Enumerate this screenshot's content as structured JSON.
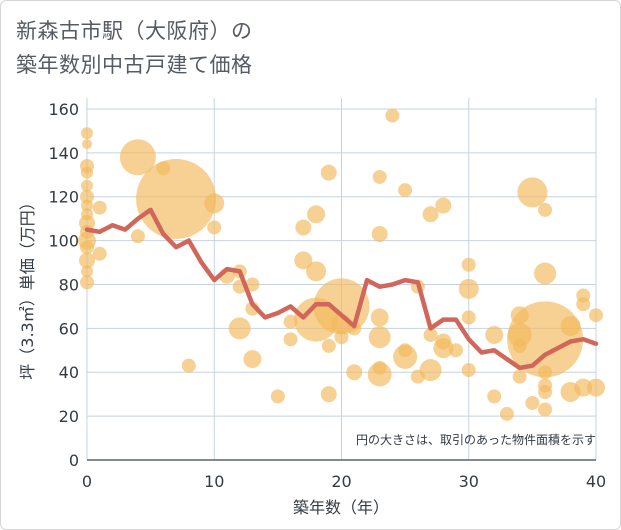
{
  "chart_data": {
    "type": "scatter+line",
    "title_lines": [
      "新森古市駅（大阪府）の",
      "築年数別中古戸建て価格"
    ],
    "xlabel": "築年数（年）",
    "ylabel": "坪（3.3㎡）単価（万円）",
    "xlim": [
      0,
      40
    ],
    "ylim": [
      0,
      165
    ],
    "x_ticks": [
      0,
      10,
      20,
      30,
      40
    ],
    "y_ticks": [
      0,
      20,
      40,
      60,
      80,
      100,
      120,
      140,
      160
    ],
    "grid": true,
    "annotation": "円の大きさは、取引のあった物件面積を示す",
    "bubble_color": "#f2b85a",
    "line_color": "#d0675a",
    "scatter": [
      {
        "x": 0,
        "y": 149,
        "s": 6
      },
      {
        "x": 0,
        "y": 144,
        "s": 5
      },
      {
        "x": 0,
        "y": 134,
        "s": 7
      },
      {
        "x": 0,
        "y": 131,
        "s": 6
      },
      {
        "x": 0,
        "y": 125,
        "s": 6
      },
      {
        "x": 0,
        "y": 120,
        "s": 7
      },
      {
        "x": 0,
        "y": 116,
        "s": 6
      },
      {
        "x": 0,
        "y": 112,
        "s": 6
      },
      {
        "x": 0,
        "y": 108,
        "s": 8
      },
      {
        "x": 0,
        "y": 104,
        "s": 7
      },
      {
        "x": 0,
        "y": 100,
        "s": 9
      },
      {
        "x": 0,
        "y": 97,
        "s": 7
      },
      {
        "x": 0,
        "y": 91,
        "s": 8
      },
      {
        "x": 0,
        "y": 86,
        "s": 6
      },
      {
        "x": 0,
        "y": 81,
        "s": 7
      },
      {
        "x": 1,
        "y": 115,
        "s": 7
      },
      {
        "x": 1,
        "y": 94,
        "s": 7
      },
      {
        "x": 4,
        "y": 138,
        "s": 18
      },
      {
        "x": 4,
        "y": 102,
        "s": 7
      },
      {
        "x": 6,
        "y": 133,
        "s": 7
      },
      {
        "x": 7,
        "y": 119,
        "s": 40
      },
      {
        "x": 8,
        "y": 43,
        "s": 7
      },
      {
        "x": 10,
        "y": 117,
        "s": 10
      },
      {
        "x": 10,
        "y": 106,
        "s": 7
      },
      {
        "x": 11,
        "y": 84,
        "s": 8
      },
      {
        "x": 12,
        "y": 86,
        "s": 7
      },
      {
        "x": 12,
        "y": 79,
        "s": 7
      },
      {
        "x": 12,
        "y": 60,
        "s": 11
      },
      {
        "x": 13,
        "y": 80,
        "s": 7
      },
      {
        "x": 13,
        "y": 69,
        "s": 7
      },
      {
        "x": 13,
        "y": 46,
        "s": 9
      },
      {
        "x": 15,
        "y": 29,
        "s": 7
      },
      {
        "x": 16,
        "y": 63,
        "s": 7
      },
      {
        "x": 16,
        "y": 55,
        "s": 7
      },
      {
        "x": 17,
        "y": 106,
        "s": 8
      },
      {
        "x": 17,
        "y": 91,
        "s": 9
      },
      {
        "x": 18,
        "y": 112,
        "s": 9
      },
      {
        "x": 18,
        "y": 86,
        "s": 10
      },
      {
        "x": 18,
        "y": 64,
        "s": 22
      },
      {
        "x": 19,
        "y": 131,
        "s": 8
      },
      {
        "x": 19,
        "y": 52,
        "s": 7
      },
      {
        "x": 19,
        "y": 30,
        "s": 8
      },
      {
        "x": 20,
        "y": 70,
        "s": 28
      },
      {
        "x": 20,
        "y": 62,
        "s": 10
      },
      {
        "x": 20,
        "y": 56,
        "s": 7
      },
      {
        "x": 21,
        "y": 40,
        "s": 8
      },
      {
        "x": 21,
        "y": 60,
        "s": 7
      },
      {
        "x": 23,
        "y": 129,
        "s": 7
      },
      {
        "x": 23,
        "y": 103,
        "s": 8
      },
      {
        "x": 23,
        "y": 65,
        "s": 9
      },
      {
        "x": 23,
        "y": 56,
        "s": 11
      },
      {
        "x": 23,
        "y": 42,
        "s": 7
      },
      {
        "x": 23,
        "y": 39,
        "s": 12
      },
      {
        "x": 24,
        "y": 157,
        "s": 7
      },
      {
        "x": 25,
        "y": 123,
        "s": 7
      },
      {
        "x": 25,
        "y": 50,
        "s": 7
      },
      {
        "x": 25,
        "y": 47,
        "s": 12
      },
      {
        "x": 26,
        "y": 79,
        "s": 7
      },
      {
        "x": 26,
        "y": 38,
        "s": 7
      },
      {
        "x": 27,
        "y": 112,
        "s": 8
      },
      {
        "x": 27,
        "y": 57,
        "s": 7
      },
      {
        "x": 27,
        "y": 41,
        "s": 11
      },
      {
        "x": 28,
        "y": 116,
        "s": 8
      },
      {
        "x": 28,
        "y": 54,
        "s": 8
      },
      {
        "x": 28,
        "y": 51,
        "s": 10
      },
      {
        "x": 29,
        "y": 50,
        "s": 7
      },
      {
        "x": 30,
        "y": 89,
        "s": 7
      },
      {
        "x": 30,
        "y": 78,
        "s": 10
      },
      {
        "x": 30,
        "y": 65,
        "s": 7
      },
      {
        "x": 30,
        "y": 41,
        "s": 7
      },
      {
        "x": 32,
        "y": 57,
        "s": 9
      },
      {
        "x": 32,
        "y": 29,
        "s": 7
      },
      {
        "x": 33,
        "y": 21,
        "s": 7
      },
      {
        "x": 34,
        "y": 66,
        "s": 9
      },
      {
        "x": 34,
        "y": 57,
        "s": 12
      },
      {
        "x": 34,
        "y": 52,
        "s": 7
      },
      {
        "x": 34,
        "y": 38,
        "s": 7
      },
      {
        "x": 35,
        "y": 122,
        "s": 15
      },
      {
        "x": 35,
        "y": 26,
        "s": 7
      },
      {
        "x": 36,
        "y": 114,
        "s": 7
      },
      {
        "x": 36,
        "y": 85,
        "s": 11
      },
      {
        "x": 36,
        "y": 55,
        "s": 38
      },
      {
        "x": 36,
        "y": 40,
        "s": 7
      },
      {
        "x": 36,
        "y": 34,
        "s": 7
      },
      {
        "x": 36,
        "y": 31,
        "s": 7
      },
      {
        "x": 36,
        "y": 23,
        "s": 7
      },
      {
        "x": 38,
        "y": 61,
        "s": 10
      },
      {
        "x": 38,
        "y": 31,
        "s": 10
      },
      {
        "x": 39,
        "y": 75,
        "s": 7
      },
      {
        "x": 39,
        "y": 71,
        "s": 7
      },
      {
        "x": 39,
        "y": 33,
        "s": 9
      },
      {
        "x": 40,
        "y": 66,
        "s": 7
      },
      {
        "x": 40,
        "y": 33,
        "s": 9
      }
    ],
    "line": {
      "x": [
        0,
        1,
        2,
        3,
        4,
        5,
        6,
        7,
        8,
        9,
        10,
        11,
        12,
        13,
        14,
        15,
        16,
        17,
        18,
        19,
        20,
        21,
        22,
        23,
        24,
        25,
        26,
        27,
        28,
        29,
        30,
        31,
        32,
        33,
        34,
        35,
        36,
        37,
        38,
        39,
        40
      ],
      "y": [
        105,
        104,
        107,
        105,
        110,
        114,
        103,
        97,
        100,
        90,
        82,
        87,
        86,
        71,
        65,
        67,
        70,
        65,
        71,
        71,
        66,
        61,
        82,
        79,
        80,
        82,
        81,
        60,
        64,
        64,
        55,
        49,
        50,
        46,
        42,
        43,
        48,
        51,
        54,
        55,
        53
      ]
    }
  }
}
